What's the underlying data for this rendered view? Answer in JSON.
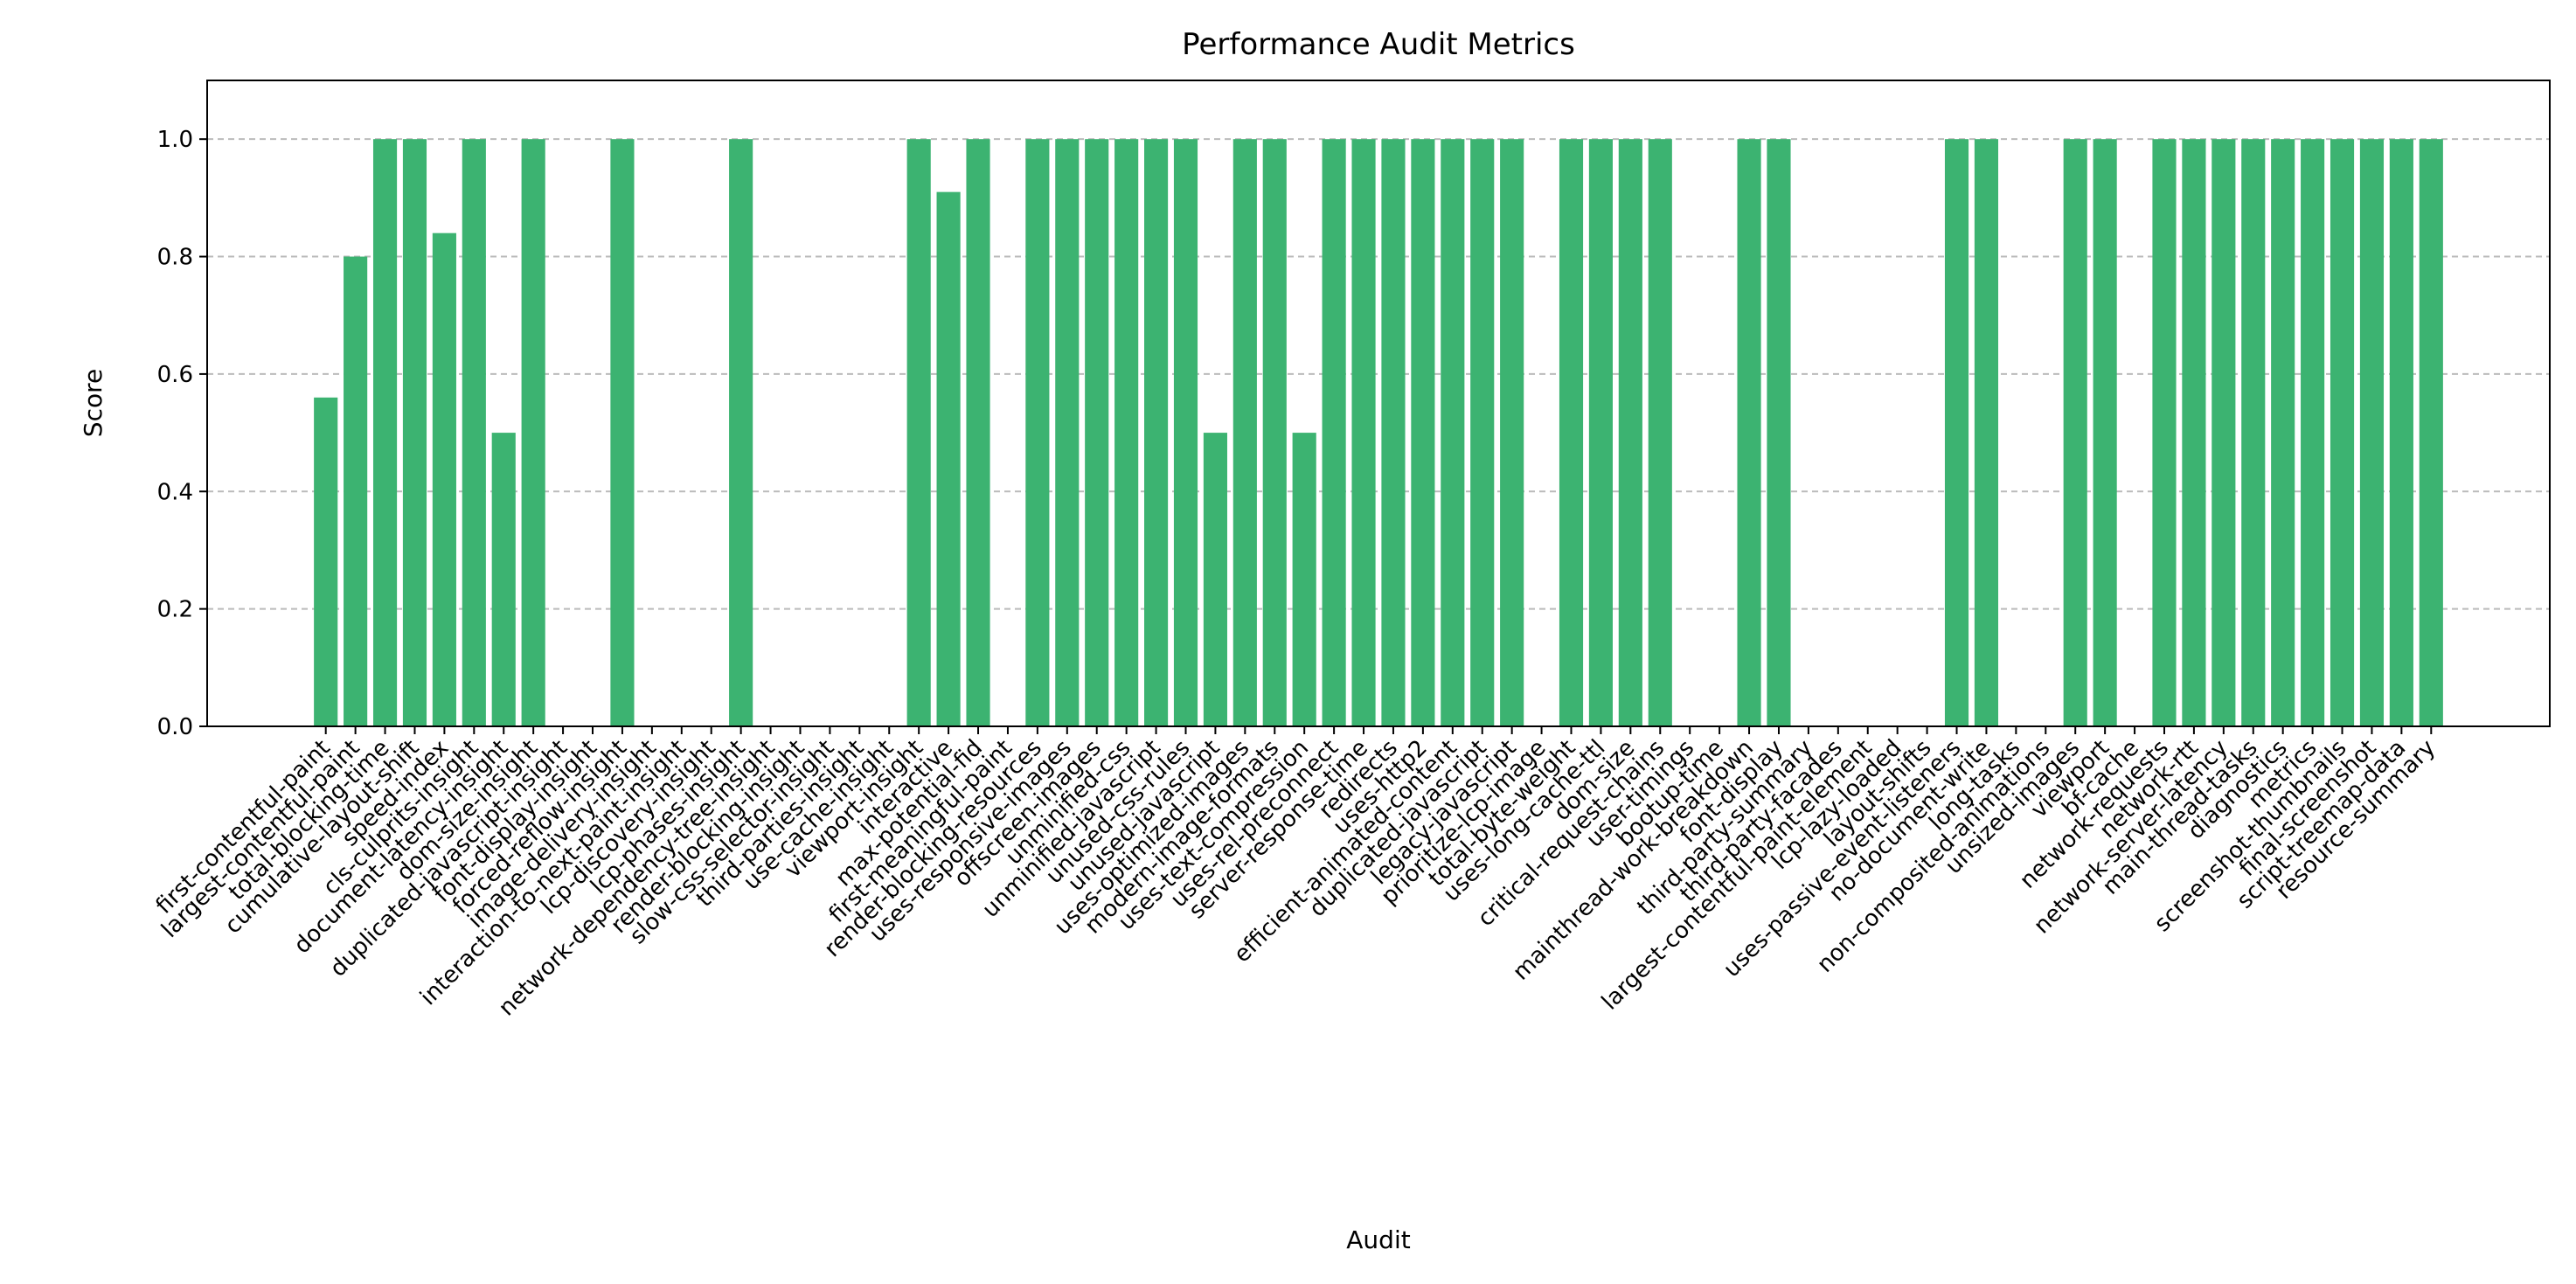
{
  "chart_data": {
    "type": "bar",
    "title": "Performance Audit Metrics",
    "x_label": "Audit",
    "y_label": "Score",
    "categories": [
      "first-contentful-paint",
      "largest-contentful-paint",
      "total-blocking-time",
      "cumulative-layout-shift",
      "speed-index",
      "cls-culprits-insight",
      "document-latency-insight",
      "dom-size-insight",
      "duplicated-javascript-insight",
      "font-display-insight",
      "forced-reflow-insight",
      "image-delivery-insight",
      "interaction-to-next-paint-insight",
      "lcp-discovery-insight",
      "lcp-phases-insight",
      "network-dependency-tree-insight",
      "render-blocking-insight",
      "slow-css-selector-insight",
      "third-parties-insight",
      "use-cache-insight",
      "viewport-insight",
      "interactive",
      "max-potential-fid",
      "first-meaningful-paint",
      "render-blocking-resources",
      "uses-responsive-images",
      "offscreen-images",
      "unminified-css",
      "unminified-javascript",
      "unused-css-rules",
      "unused-javascript",
      "uses-optimized-images",
      "modern-image-formats",
      "uses-text-compression",
      "uses-rel-preconnect",
      "server-response-time",
      "redirects",
      "uses-http2",
      "efficient-animated-content",
      "duplicated-javascript",
      "legacy-javascript",
      "prioritize-lcp-image",
      "total-byte-weight",
      "uses-long-cache-ttl",
      "dom-size",
      "critical-request-chains",
      "user-timings",
      "bootup-time",
      "mainthread-work-breakdown",
      "font-display",
      "third-party-summary",
      "third-party-facades",
      "largest-contentful-paint-element",
      "lcp-lazy-loaded",
      "layout-shifts",
      "uses-passive-event-listeners",
      "no-document-write",
      "long-tasks",
      "non-composited-animations",
      "unsized-images",
      "viewport",
      "bf-cache",
      "network-requests",
      "network-rtt",
      "network-server-latency",
      "main-thread-tasks",
      "diagnostics",
      "metrics",
      "screenshot-thumbnails",
      "final-screenshot",
      "script-treemap-data",
      "resource-summary"
    ],
    "values": [
      0.56,
      0.8,
      1,
      1,
      0.84,
      1,
      0.5,
      1,
      null,
      null,
      1,
      null,
      null,
      null,
      1,
      null,
      null,
      null,
      null,
      null,
      1,
      0.91,
      1,
      null,
      1,
      1,
      1,
      1,
      1,
      1,
      0.5,
      1,
      1,
      0.5,
      1,
      1,
      1,
      1,
      1,
      1,
      1,
      null,
      1,
      1,
      1,
      1,
      null,
      null,
      1,
      1,
      null,
      null,
      null,
      null,
      null,
      1,
      1,
      null,
      null,
      1,
      1,
      null,
      1,
      1,
      1,
      1,
      1,
      1,
      1,
      1,
      1,
      1
    ],
    "color": "#3cb371",
    "ylim": [
      0,
      1.1
    ],
    "yticks": [
      {
        "value": 0,
        "label": "0.0"
      },
      {
        "value": 0.2,
        "label": "0.2"
      },
      {
        "value": 0.4,
        "label": "0.4"
      },
      {
        "value": 0.6,
        "label": "0.6"
      },
      {
        "value": 0.8,
        "label": "0.8"
      },
      {
        "value": 1,
        "label": "1.0"
      }
    ],
    "grid": true
  }
}
